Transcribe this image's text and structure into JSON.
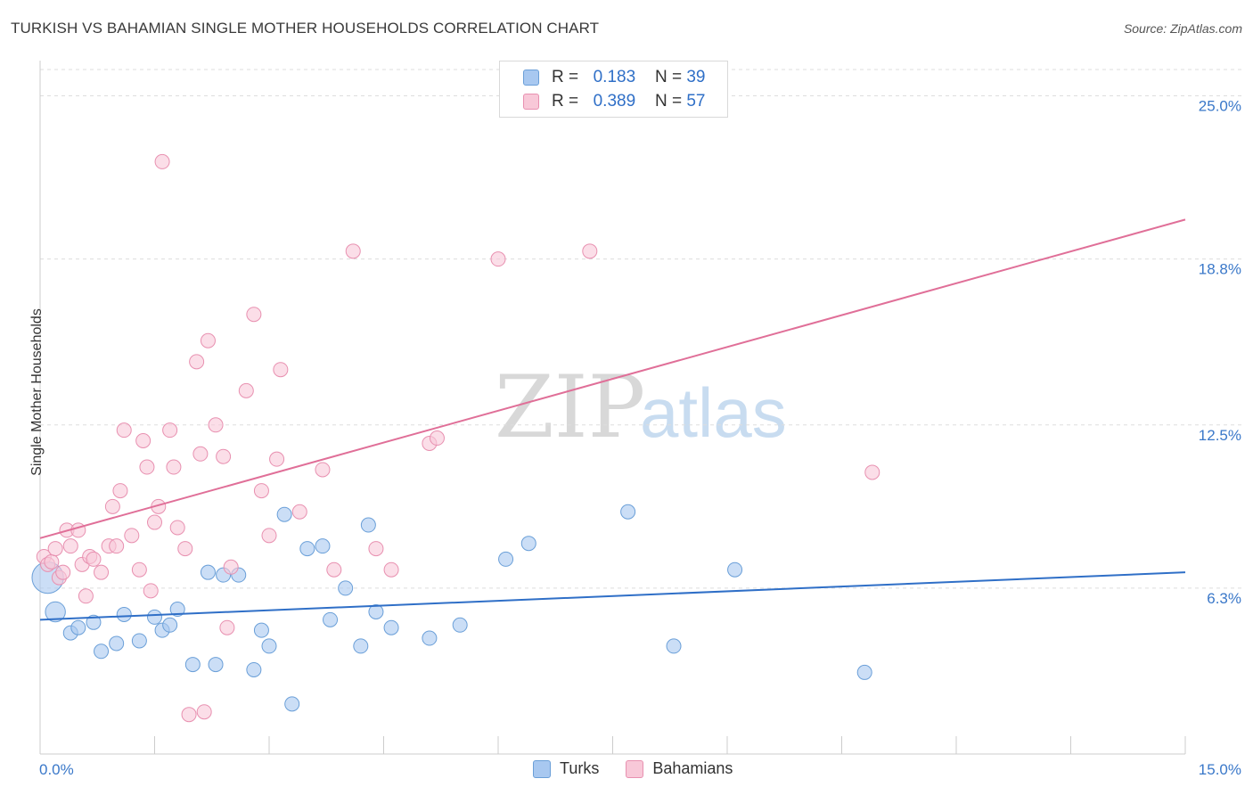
{
  "title": "TURKISH VS BAHAMIAN SINGLE MOTHER HOUSEHOLDS CORRELATION CHART",
  "source": "Source: ZipAtlas.com",
  "watermark": {
    "zip": "ZIP",
    "atlas": "atlas"
  },
  "legend": {
    "rows": [
      {
        "r_label": "R =",
        "r_value": "0.183",
        "n_label": "N =",
        "n_value": "39",
        "color": "#a8c8f0"
      },
      {
        "r_label": "R =",
        "r_value": "0.389",
        "n_label": "N =",
        "n_value": "57",
        "color": "#f5b8cc"
      }
    ],
    "bottom": [
      "Turks",
      "Bahamians"
    ]
  },
  "colors": {
    "turks_fill": "#a8c8f0",
    "turks_stroke": "#6a9fd8",
    "turks_line": "#2f6fc7",
    "bahamians_fill": "#f8c8d8",
    "bahamians_stroke": "#e890b0",
    "bahamians_line": "#e06f98",
    "tick_text": "#3a78c9",
    "grid": "#dddddd"
  },
  "chart_data": {
    "type": "scatter",
    "title": "TURKISH VS BAHAMIAN SINGLE MOTHER HOUSEHOLDS CORRELATION CHART",
    "xlabel": "",
    "ylabel": "Single Mother Households",
    "xlim": [
      0,
      15
    ],
    "ylim": [
      0,
      26
    ],
    "x_tick_labels": [
      "0.0%",
      "15.0%"
    ],
    "y_ticks": [
      6.3,
      12.5,
      18.8,
      25.0
    ],
    "y_tick_labels": [
      "6.3%",
      "12.5%",
      "18.8%",
      "25.0%"
    ],
    "grid": "horizontal dashed",
    "legend_placement": "top-center",
    "series": [
      {
        "name": "Turks",
        "r": 0.183,
        "n": 39,
        "trend": {
          "x": [
            0,
            15
          ],
          "y": [
            5.1,
            6.9
          ]
        },
        "points": [
          [
            0.1,
            6.7,
            2.2
          ],
          [
            0.2,
            5.4,
            1.4
          ],
          [
            0.4,
            4.6,
            1
          ],
          [
            0.5,
            4.8,
            1
          ],
          [
            0.7,
            5.0,
            1
          ],
          [
            0.8,
            3.9,
            1
          ],
          [
            1.0,
            4.2,
            1
          ],
          [
            1.1,
            5.3,
            1
          ],
          [
            1.3,
            4.3,
            1
          ],
          [
            1.5,
            5.2,
            1
          ],
          [
            1.6,
            4.7,
            1
          ],
          [
            1.7,
            4.9,
            1
          ],
          [
            1.8,
            5.5,
            1
          ],
          [
            2.0,
            3.4,
            1
          ],
          [
            2.2,
            6.9,
            1
          ],
          [
            2.3,
            3.4,
            1
          ],
          [
            2.4,
            6.8,
            1
          ],
          [
            2.6,
            6.8,
            1
          ],
          [
            2.8,
            3.2,
            1
          ],
          [
            2.9,
            4.7,
            1
          ],
          [
            3.0,
            4.1,
            1
          ],
          [
            3.2,
            9.1,
            1
          ],
          [
            3.3,
            1.9,
            1
          ],
          [
            3.5,
            7.8,
            1
          ],
          [
            3.7,
            7.9,
            1
          ],
          [
            3.8,
            5.1,
            1
          ],
          [
            4.0,
            6.3,
            1
          ],
          [
            4.2,
            4.1,
            1
          ],
          [
            4.3,
            8.7,
            1
          ],
          [
            4.4,
            5.4,
            1
          ],
          [
            4.6,
            4.8,
            1
          ],
          [
            5.1,
            4.4,
            1
          ],
          [
            5.5,
            4.9,
            1
          ],
          [
            6.1,
            7.4,
            1
          ],
          [
            6.4,
            8.0,
            1
          ],
          [
            7.7,
            9.2,
            1
          ],
          [
            8.3,
            4.1,
            1
          ],
          [
            9.1,
            7.0,
            1
          ],
          [
            10.8,
            3.1,
            1
          ]
        ]
      },
      {
        "name": "Bahamians",
        "r": 0.389,
        "n": 57,
        "trend": {
          "x": [
            0,
            15
          ],
          "y": [
            8.2,
            20.3
          ]
        },
        "points": [
          [
            0.05,
            7.5,
            1
          ],
          [
            0.1,
            7.2,
            1
          ],
          [
            0.15,
            7.3,
            1
          ],
          [
            0.2,
            7.8,
            1
          ],
          [
            0.25,
            6.7,
            1
          ],
          [
            0.3,
            6.9,
            1
          ],
          [
            0.35,
            8.5,
            1
          ],
          [
            0.4,
            7.9,
            1
          ],
          [
            0.5,
            8.5,
            1
          ],
          [
            0.55,
            7.2,
            1
          ],
          [
            0.6,
            6.0,
            1
          ],
          [
            0.65,
            7.5,
            1
          ],
          [
            0.7,
            7.4,
            1
          ],
          [
            0.8,
            6.9,
            1
          ],
          [
            0.9,
            7.9,
            1
          ],
          [
            0.95,
            9.4,
            1
          ],
          [
            1.0,
            7.9,
            1
          ],
          [
            1.05,
            10.0,
            1
          ],
          [
            1.1,
            12.3,
            1
          ],
          [
            1.2,
            8.3,
            1
          ],
          [
            1.3,
            7.0,
            1
          ],
          [
            1.35,
            11.9,
            1
          ],
          [
            1.4,
            10.9,
            1
          ],
          [
            1.45,
            6.2,
            1
          ],
          [
            1.5,
            8.8,
            1
          ],
          [
            1.55,
            9.4,
            1
          ],
          [
            1.7,
            12.3,
            1
          ],
          [
            1.75,
            10.9,
            1
          ],
          [
            1.8,
            8.6,
            1
          ],
          [
            1.9,
            7.8,
            1
          ],
          [
            1.95,
            1.5,
            1
          ],
          [
            2.05,
            14.9,
            1
          ],
          [
            2.1,
            11.4,
            1
          ],
          [
            2.15,
            1.6,
            1
          ],
          [
            2.2,
            15.7,
            1
          ],
          [
            2.3,
            12.5,
            1
          ],
          [
            2.4,
            11.3,
            1
          ],
          [
            2.45,
            4.8,
            1
          ],
          [
            2.5,
            7.1,
            1
          ],
          [
            2.7,
            13.8,
            1
          ],
          [
            2.8,
            16.7,
            1
          ],
          [
            2.9,
            10.0,
            1
          ],
          [
            3.0,
            8.3,
            1
          ],
          [
            3.1,
            11.2,
            1
          ],
          [
            3.15,
            14.6,
            1
          ],
          [
            3.4,
            9.2,
            1
          ],
          [
            3.7,
            10.8,
            1
          ],
          [
            3.85,
            7.0,
            1
          ],
          [
            4.1,
            19.1,
            1
          ],
          [
            4.4,
            7.8,
            1
          ],
          [
            4.6,
            7.0,
            1
          ],
          [
            5.1,
            11.8,
            1
          ],
          [
            5.2,
            12.0,
            1
          ],
          [
            6.0,
            18.8,
            1
          ],
          [
            7.2,
            19.1,
            1
          ],
          [
            10.9,
            10.7,
            1
          ],
          [
            1.6,
            22.5,
            1
          ]
        ]
      }
    ]
  }
}
